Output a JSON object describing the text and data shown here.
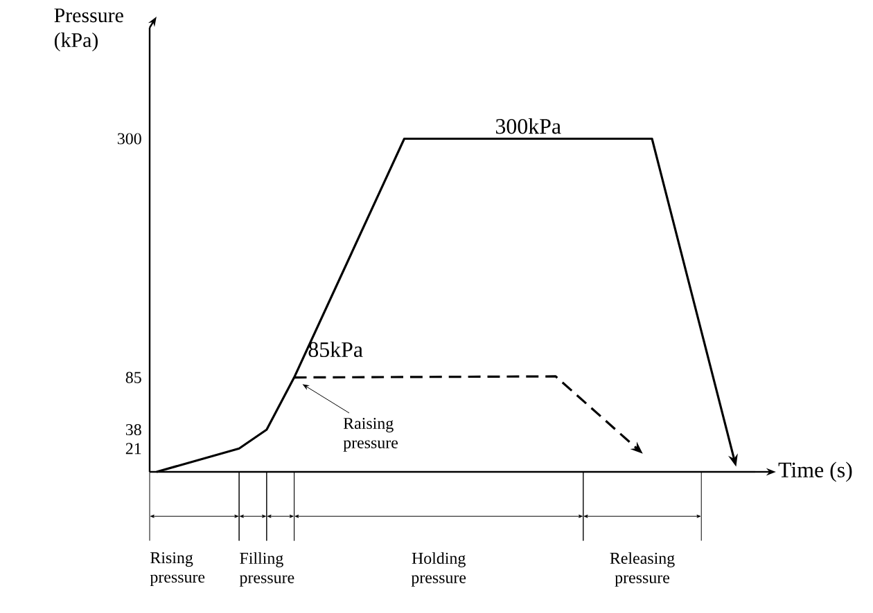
{
  "chart_data": {
    "type": "line",
    "xlabel": "Time (s)",
    "ylabel": "Pressure (kPa)",
    "categories": [
      null,
      null,
      null,
      null,
      null,
      null,
      null,
      null,
      null,
      null,
      null,
      null,
      null,
      null,
      null,
      null,
      null,
      null,
      null,
      null,
      null,
      null,
      null,
      null,
      null,
      null,
      null,
      null,
      null,
      null,
      null,
      null,
      null,
      null,
      null,
      null,
      null,
      null,
      null,
      null,
      null,
      null,
      null,
      null
    ],
    "series": [
      {
        "color": "#000000",
        "line_style": "solid",
        "values": [
          0,
          null,
          null,
          null,
          null,
          null,
          21,
          null,
          38,
          null,
          85,
          null,
          null,
          null,
          null,
          null,
          null,
          null,
          300,
          null,
          null,
          null,
          null,
          null,
          null,
          null,
          null,
          null,
          null,
          null,
          null,
          null,
          null,
          null,
          null,
          null,
          300,
          null,
          null,
          null,
          null,
          null,
          10,
          null
        ]
      },
      {
        "color": "#000000",
        "line_style": "dashed",
        "values": [
          null,
          null,
          null,
          null,
          null,
          null,
          null,
          null,
          null,
          null,
          85,
          null,
          null,
          null,
          null,
          null,
          null,
          null,
          null,
          null,
          null,
          null,
          null,
          null,
          null,
          null,
          null,
          null,
          null,
          86,
          null,
          null,
          null,
          null,
          null,
          20,
          null,
          null,
          null,
          null,
          null,
          null,
          null,
          null
        ]
      }
    ],
    "ylim": [
      0,
      400
    ],
    "yticks": [
      21,
      38,
      85,
      300
    ],
    "tick_labels": "y",
    "annotations": [
      "300kPa",
      "85kPa",
      "Raising pressure",
      "Rising pressure",
      "Filling pressure",
      "Holding pressure",
      "Releasing pressure"
    ]
  }
}
